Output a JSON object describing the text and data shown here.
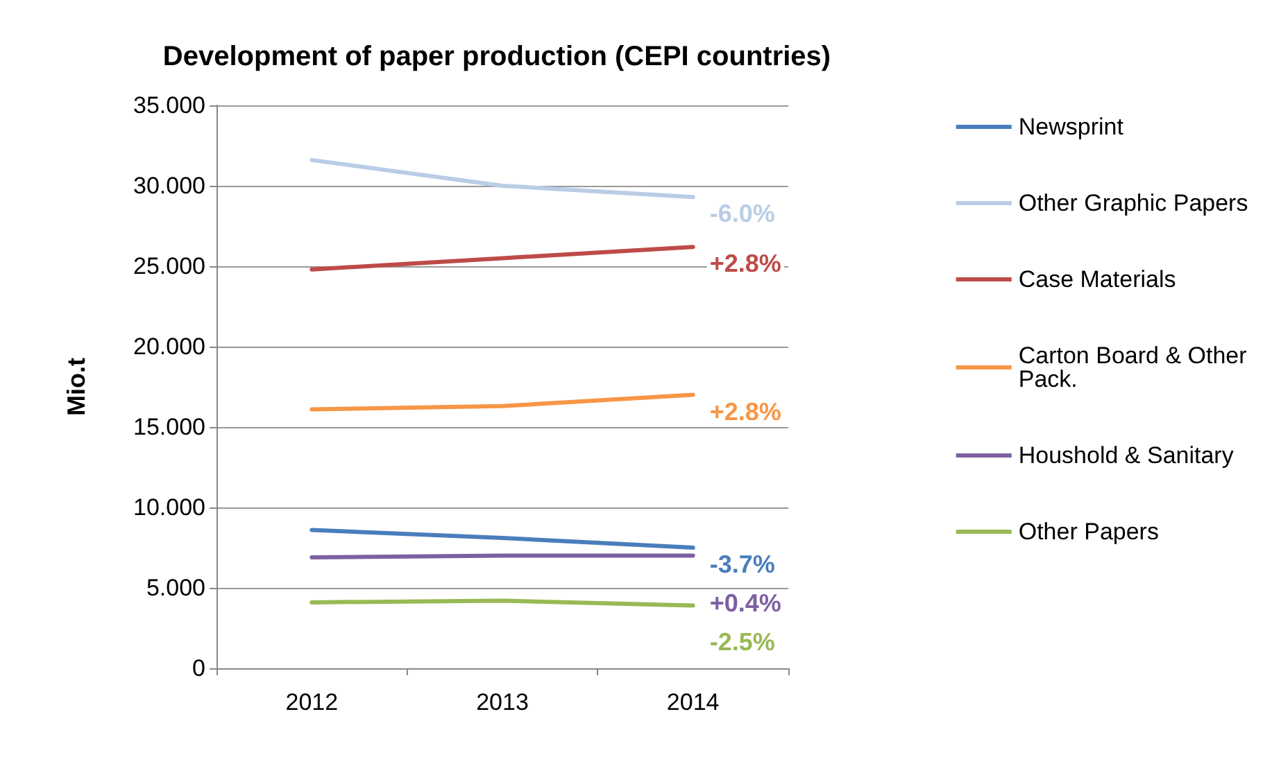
{
  "chart_data": {
    "type": "line",
    "title": "Development of paper production (CEPI countries)",
    "ylabel": "Mio.t",
    "categories": [
      "2012",
      "2013",
      "2014"
    ],
    "series": [
      {
        "name": "Newsprint",
        "color": "#4a7ebb",
        "values": [
          8.6,
          8.1,
          7.5
        ]
      },
      {
        "name": "Other Graphic Papers",
        "color": "#b9cde5",
        "values": [
          31.6,
          30.0,
          29.3
        ]
      },
      {
        "name": "Case Materials",
        "color": "#be4b48",
        "values": [
          24.8,
          25.5,
          26.2
        ]
      },
      {
        "name": "Carton Board & Other Pack.",
        "color": "#f79646",
        "values": [
          16.1,
          16.3,
          17.0
        ]
      },
      {
        "name": "Houshold & Sanitary",
        "color": "#7d60a0",
        "values": [
          6.9,
          7.0,
          7.0
        ]
      },
      {
        "name": "Other Papers",
        "color": "#98b954",
        "values": [
          4.1,
          4.2,
          3.9
        ]
      }
    ],
    "ylim": [
      0,
      35
    ],
    "yticks": [
      {
        "value": 0,
        "label": "0"
      },
      {
        "value": 5,
        "label": "5.000"
      },
      {
        "value": 10,
        "label": "10.000"
      },
      {
        "value": 15,
        "label": "15.000"
      },
      {
        "value": 20,
        "label": "20.000"
      },
      {
        "value": 25,
        "label": "25.000"
      },
      {
        "value": 30,
        "label": "30.000"
      },
      {
        "value": 35,
        "label": "35.000"
      }
    ],
    "grid": "y",
    "legend": "right",
    "marker": "none",
    "line_style": "solid",
    "annotations": [
      "-6.0%",
      "+2.8%",
      "+2.8%",
      "-3.7%",
      "+0.4%",
      "-2.5%"
    ]
  }
}
